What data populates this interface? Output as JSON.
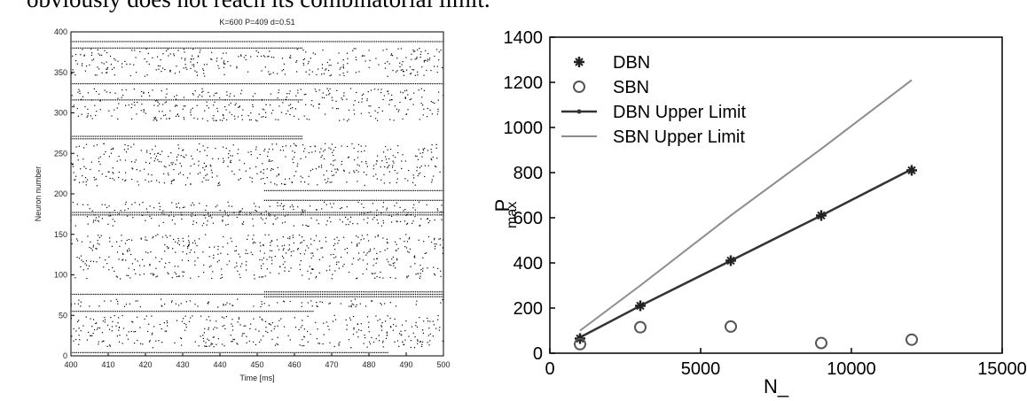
{
  "caption_fragment": "obviously does not reach its combinatorial limit.",
  "chart_data": [
    {
      "type": "scatter",
      "title": "K=600 P=409 d=0.51",
      "xlabel": "Time [ms]",
      "ylabel": "Neuron number",
      "xlim": [
        400,
        500
      ],
      "ylim": [
        0,
        400
      ],
      "x_ticks": [
        400,
        410,
        420,
        430,
        440,
        450,
        460,
        470,
        480,
        490,
        500
      ],
      "y_ticks": [
        0,
        50,
        100,
        150,
        200,
        250,
        300,
        350,
        400
      ],
      "grid": false,
      "marker_color": "#000000",
      "dense_rows": [
        {
          "y": 388,
          "x_start": 400,
          "x_end": 500
        },
        {
          "y": 380,
          "x_start": 400,
          "x_end": 462
        },
        {
          "y": 336,
          "x_start": 400,
          "x_end": 500
        },
        {
          "y": 316,
          "x_start": 400,
          "x_end": 462
        },
        {
          "y": 271,
          "x_start": 400,
          "x_end": 462
        },
        {
          "y": 268,
          "x_start": 400,
          "x_end": 462
        },
        {
          "y": 204,
          "x_start": 452,
          "x_end": 500
        },
        {
          "y": 192,
          "x_start": 452,
          "x_end": 500
        },
        {
          "y": 177,
          "x_start": 400,
          "x_end": 500
        },
        {
          "y": 174,
          "x_start": 400,
          "x_end": 500
        },
        {
          "y": 79,
          "x_start": 452,
          "x_end": 500
        },
        {
          "y": 76,
          "x_start": 400,
          "x_end": 500
        },
        {
          "y": 73,
          "x_start": 452,
          "x_end": 500
        },
        {
          "y": 55,
          "x_start": 400,
          "x_end": 465
        },
        {
          "y": 4,
          "x_start": 400,
          "x_end": 485
        }
      ],
      "sparse_bands": [
        {
          "y_min": 345,
          "y_max": 380
        },
        {
          "y_min": 290,
          "y_max": 330
        },
        {
          "y_min": 210,
          "y_max": 262
        },
        {
          "y_min": 160,
          "y_max": 190
        },
        {
          "y_min": 95,
          "y_max": 150
        },
        {
          "y_min": 60,
          "y_max": 70
        },
        {
          "y_min": 10,
          "y_max": 50
        }
      ]
    },
    {
      "type": "line",
      "xlabel": "N_",
      "ylabel": "P",
      "ylabel_sub": "max",
      "xlim": [
        0,
        15000
      ],
      "ylim": [
        0,
        1400
      ],
      "x_ticks": [
        0,
        5000,
        10000,
        15000
      ],
      "y_ticks": [
        0,
        200,
        400,
        600,
        800,
        1000,
        1200,
        1400
      ],
      "legend_position": "top-left",
      "series": [
        {
          "name": "DBN",
          "kind": "marker-star",
          "color": "#222222",
          "x": [
            1000,
            3000,
            6000,
            9000,
            12000
          ],
          "y": [
            65,
            210,
            410,
            610,
            810
          ]
        },
        {
          "name": "SBN",
          "kind": "marker-circle",
          "color": "#555555",
          "x": [
            1000,
            3000,
            6000,
            9000,
            12000
          ],
          "y": [
            40,
            115,
            118,
            45,
            60
          ]
        },
        {
          "name": "DBN Upper Limit",
          "kind": "line-dot",
          "color": "#333333",
          "x": [
            1000,
            3000,
            6000,
            9000,
            12000
          ],
          "y": [
            70,
            210,
            410,
            610,
            815
          ]
        },
        {
          "name": "SBN Upper Limit",
          "kind": "line",
          "color": "#8c8c8c",
          "x": [
            1000,
            3000,
            6000,
            9000,
            12000
          ],
          "y": [
            100,
            300,
            610,
            905,
            1210
          ]
        }
      ]
    }
  ]
}
